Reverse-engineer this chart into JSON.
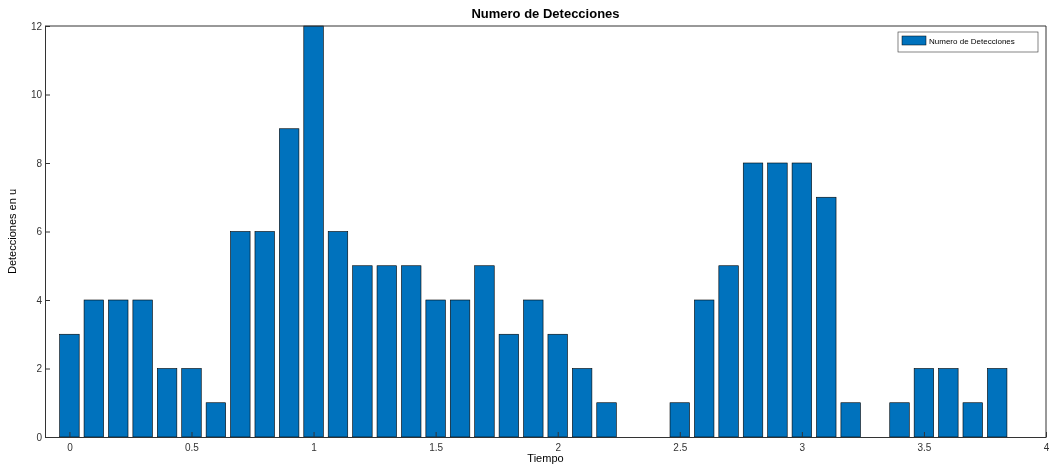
{
  "chart_data": {
    "type": "bar",
    "title": "Numero de Detecciones",
    "xlabel": "Tiempo",
    "ylabel": "Detecciones en u",
    "x": [
      0,
      0.1,
      0.2,
      0.3,
      0.4,
      0.5,
      0.6,
      0.7,
      0.8,
      0.9,
      1,
      1.1,
      1.2,
      1.3,
      1.4,
      1.5,
      1.6,
      1.7,
      1.8,
      1.9,
      2,
      2.1,
      2.2,
      2.3,
      2.4,
      2.5,
      2.6,
      2.7,
      2.8,
      2.9,
      3,
      3.1,
      3.2,
      3.3,
      3.4,
      3.5,
      3.6,
      3.7,
      3.8
    ],
    "series": [
      {
        "name": "Numero de Detecciones",
        "color": "#0072bd",
        "values": [
          3,
          4,
          4,
          4,
          2,
          2,
          1,
          6,
          6,
          9,
          12,
          6,
          5,
          5,
          5,
          4,
          4,
          5,
          3,
          4,
          3,
          2,
          1,
          0,
          0,
          1,
          4,
          5,
          8,
          8,
          8,
          7,
          1,
          0,
          1,
          2,
          2,
          1,
          2
        ]
      }
    ],
    "xlim": [
      -0.1,
      4
    ],
    "xticks": [
      0,
      0.5,
      1,
      1.5,
      2,
      2.5,
      3,
      3.5,
      4
    ],
    "ylim": [
      0,
      12
    ],
    "yticks": [
      0,
      2,
      4,
      6,
      8,
      10,
      12
    ],
    "grid": false,
    "legend": "top right"
  }
}
